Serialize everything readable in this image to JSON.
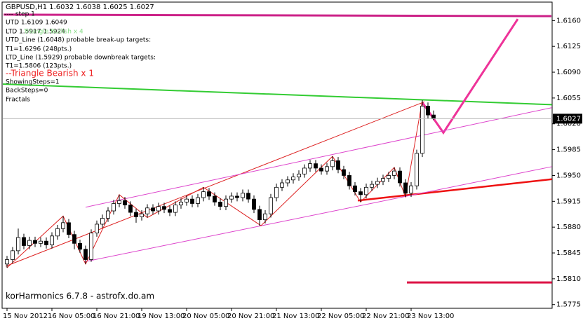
{
  "chart_data": {
    "type": "candlestick",
    "title": "GBPUSD,H1  1.6032 1.6038 1.6025 1.6027",
    "categories": [
      "15 Nov 2012",
      null,
      null,
      null,
      null,
      null,
      null,
      null,
      "16 Nov 05:00",
      null,
      null,
      null,
      null,
      null,
      null,
      null,
      "16 Nov 21:00",
      null,
      null,
      null,
      null,
      null,
      null,
      null,
      "19 Nov 13:00",
      null,
      null,
      null,
      null,
      null,
      null,
      null,
      "20 Nov 05:00",
      null,
      null,
      null,
      null,
      null,
      null,
      null,
      "20 Nov 21:00",
      null,
      null,
      null,
      null,
      null,
      null,
      null,
      "21 Nov 13:00",
      null,
      null,
      null,
      null,
      null,
      null,
      null,
      "22 Nov 05:00",
      null,
      null,
      null,
      null,
      null,
      null,
      null,
      "22 Nov 21:00",
      null,
      null,
      null,
      null,
      null,
      null,
      null,
      "23 Nov 13:00",
      null,
      null,
      null,
      null
    ],
    "open": [
      1.583,
      1.5836,
      1.5848,
      1.5866,
      1.5855,
      1.5862,
      1.5858,
      1.5861,
      1.5856,
      1.5868,
      1.5878,
      1.5886,
      1.587,
      1.5858,
      1.585,
      1.5836,
      1.5872,
      1.5884,
      1.5892,
      1.5902,
      1.5912,
      1.5916,
      1.591,
      1.59,
      1.5894,
      1.5898,
      1.5906,
      1.5902,
      1.5908,
      1.5904,
      1.59,
      1.591,
      1.5914,
      1.5918,
      1.5912,
      1.592,
      1.5928,
      1.5922,
      1.5914,
      1.5908,
      1.5918,
      1.5922,
      1.592,
      1.5926,
      1.5918,
      1.5904,
      1.589,
      1.5898,
      1.592,
      1.5934,
      1.594,
      1.5944,
      1.5948,
      1.5952,
      1.596,
      1.5966,
      1.596,
      1.5956,
      1.5962,
      1.597,
      1.5958,
      1.595,
      1.5936,
      1.5928,
      1.5924,
      1.5934,
      1.5938,
      1.5942,
      1.5946,
      1.595,
      1.5956,
      1.594,
      1.5926,
      1.5936,
      1.598,
      1.6044,
      1.6032
    ],
    "high": [
      1.5841,
      1.5853,
      1.5878,
      1.5871,
      1.5867,
      1.5867,
      1.5866,
      1.5866,
      1.5873,
      1.5883,
      1.5895,
      1.5891,
      1.5875,
      1.5863,
      1.5855,
      1.5877,
      1.5889,
      1.5897,
      1.5907,
      1.5917,
      1.5924,
      1.5921,
      1.5915,
      1.5905,
      1.5903,
      1.5911,
      1.5911,
      1.5913,
      1.5913,
      1.5909,
      1.5915,
      1.5919,
      1.5923,
      1.5923,
      1.5925,
      1.5934,
      1.5933,
      1.5927,
      1.5919,
      1.5923,
      1.5927,
      1.5927,
      1.5931,
      1.5931,
      1.5923,
      1.5909,
      1.5903,
      1.5925,
      1.5939,
      1.5945,
      1.5949,
      1.5953,
      1.5957,
      1.5965,
      1.5971,
      1.5971,
      1.5965,
      1.5967,
      1.5976,
      1.5975,
      1.5963,
      1.5955,
      1.5941,
      1.5933,
      1.5939,
      1.5943,
      1.5947,
      1.5951,
      1.5955,
      1.5961,
      1.5961,
      1.5945,
      1.5941,
      1.5985,
      1.6052,
      1.6049,
      1.6038
    ],
    "low": [
      1.5825,
      1.5831,
      1.5843,
      1.585,
      1.585,
      1.5853,
      1.5853,
      1.5851,
      1.5851,
      1.5863,
      1.5873,
      1.5865,
      1.585,
      1.5845,
      1.583,
      1.5833,
      1.5867,
      1.5879,
      1.5887,
      1.5897,
      1.5907,
      1.5905,
      1.5895,
      1.5886,
      1.5889,
      1.5893,
      1.5897,
      1.5897,
      1.5899,
      1.5895,
      1.5895,
      1.5905,
      1.5909,
      1.5907,
      1.5907,
      1.5915,
      1.5917,
      1.5909,
      1.5903,
      1.5903,
      1.5913,
      1.5915,
      1.5915,
      1.5913,
      1.5899,
      1.5882,
      1.5885,
      1.5893,
      1.5915,
      1.5929,
      1.5935,
      1.5939,
      1.5943,
      1.5947,
      1.5955,
      1.5955,
      1.5951,
      1.5951,
      1.5957,
      1.5953,
      1.5945,
      1.5931,
      1.5923,
      1.5914,
      1.5919,
      1.5929,
      1.5933,
      1.5937,
      1.5941,
      1.5945,
      1.5935,
      1.5921,
      1.5921,
      1.5931,
      1.5975,
      1.6027,
      1.6025
    ],
    "close": [
      1.5836,
      1.5848,
      1.5866,
      1.5855,
      1.5862,
      1.5858,
      1.5861,
      1.5856,
      1.5868,
      1.5878,
      1.5886,
      1.587,
      1.5858,
      1.585,
      1.5836,
      1.5872,
      1.5884,
      1.5892,
      1.5902,
      1.5912,
      1.5916,
      1.591,
      1.59,
      1.5894,
      1.5898,
      1.5906,
      1.5902,
      1.5908,
      1.5904,
      1.59,
      1.591,
      1.5914,
      1.5918,
      1.5912,
      1.592,
      1.5928,
      1.5922,
      1.5914,
      1.5908,
      1.5918,
      1.5922,
      1.592,
      1.5926,
      1.5918,
      1.5904,
      1.589,
      1.5898,
      1.592,
      1.5934,
      1.594,
      1.5944,
      1.5948,
      1.5952,
      1.596,
      1.5966,
      1.596,
      1.5956,
      1.5962,
      1.597,
      1.5958,
      1.595,
      1.5936,
      1.5928,
      1.5924,
      1.5934,
      1.5938,
      1.5942,
      1.5946,
      1.595,
      1.5956,
      1.594,
      1.5926,
      1.5936,
      1.598,
      1.6044,
      1.6032,
      1.6027
    ],
    "ylim": [
      1.577,
      1.6185
    ],
    "yticks": [
      {
        "value": 1.616,
        "label": "1.6160"
      },
      {
        "value": 1.6125,
        "label": "1.6125"
      },
      {
        "value": 1.609,
        "label": "1.6090"
      },
      {
        "value": 1.6055,
        "label": "1.6055"
      },
      {
        "value": 1.602,
        "label": "1.6020"
      },
      {
        "value": 1.5985,
        "label": "1.5985"
      },
      {
        "value": 1.595,
        "label": "1.5950"
      },
      {
        "value": 1.5915,
        "label": "1.5915"
      },
      {
        "value": 1.588,
        "label": "1.5880"
      },
      {
        "value": 1.5845,
        "label": "1.5845"
      },
      {
        "value": 1.581,
        "label": "1.5810"
      },
      {
        "value": 1.5775,
        "label": "1.5775"
      }
    ],
    "overlays": [
      {
        "color": "#cc2288",
        "width": 3,
        "x": [
          -0.6,
          97
        ],
        "y": [
          1.6168,
          1.6166
        ]
      },
      {
        "color": "#33cc33",
        "width": 2,
        "x": [
          -1.25,
          97.1
        ],
        "y": [
          1.6074,
          1.6046
        ]
      },
      {
        "color": "#ee3399",
        "width": 3,
        "x": [
          74,
          77.75,
          91
        ],
        "y": [
          1.6049,
          1.6008,
          1.6162
        ]
      },
      {
        "color": "#dd1144",
        "width": 3,
        "x": [
          71.25,
          97.1
        ],
        "y": [
          1.5805,
          1.5805
        ]
      },
      {
        "color": "#dd2222",
        "width": 1,
        "x": [
          -0.25,
          74.4
        ],
        "y": [
          1.5827,
          1.605
        ]
      },
      {
        "color": "#ee1111",
        "width": 2.5,
        "x": [
          62.5,
          97.1
        ],
        "y": [
          1.5916,
          1.5945
        ]
      },
      {
        "color": "#dd44cc",
        "width": 1,
        "x": [
          13.75,
          97.1
        ],
        "y": [
          1.5833,
          1.5962
        ]
      },
      {
        "color": "#dd44cc",
        "width": 1,
        "x": [
          14,
          97.1
        ],
        "y": [
          1.5907,
          1.6042
        ]
      },
      {
        "color": "#dd2222",
        "width": 1,
        "x": [
          0,
          10,
          14,
          20,
          25,
          35,
          45.25,
          58,
          63,
          69,
          71,
          74
        ],
        "y": [
          1.5825,
          1.5895,
          1.583,
          1.5924,
          1.5893,
          1.5934,
          1.5882,
          1.5976,
          1.5914,
          1.5961,
          1.5921,
          1.6052
        ]
      }
    ],
    "annotations": [
      {
        "text": "---- step 1",
        "color": "#000000"
      },
      {
        "text": "UTD 1.6109  1.6049",
        "color": "#000000"
      },
      {
        "text": "LTD  1.5917  1.5924",
        "color": "#000000"
      },
      {
        "text": "UTD_Line (1.6048) probable break-up targets:",
        "color": "#000000"
      },
      {
        "text": "T1=1.6296 (248pts.)",
        "color": "#000000"
      },
      {
        "text": "LTD_Line (1.5929) probable downbreak targets:",
        "color": "#000000"
      },
      {
        "text": "T1=1.5806 (123pts.)",
        "color": "#000000"
      },
      {
        "text": "--Triangle Bearish x 1",
        "color": "#ee2222"
      },
      {
        "text": "ShowingSteps=1",
        "color": "#000000"
      },
      {
        "text": "BackSteps=0",
        "color": "#000000"
      },
      {
        "text": "Fractals",
        "color": "#000000"
      },
      {
        "text": "Triangle Bullish x 4",
        "color": "#88dd88"
      }
    ],
    "footer": "korHarmonics 6.7.8 - astrofx.do.am"
  }
}
